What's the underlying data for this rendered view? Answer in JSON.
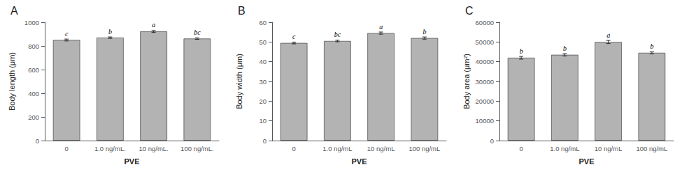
{
  "chart_data": [
    {
      "type": "bar",
      "title": "A",
      "xlabel": "PVE",
      "ylabel": "Body length (μm)",
      "categories": [
        "0",
        "1.0 ng/mL.",
        "10 ng/mL.",
        "100 ng/mL."
      ],
      "values": [
        850,
        870,
        922,
        862
      ],
      "errors": [
        8,
        6,
        8,
        6
      ],
      "annotations": [
        "c",
        "b",
        "a",
        "bc"
      ],
      "color": "#b3b3b3",
      "ylim": [
        0,
        1000
      ],
      "yticks": [
        0,
        200,
        400,
        600,
        800,
        1000
      ],
      "grid": false
    },
    {
      "type": "bar",
      "title": "B",
      "xlabel": "PVE",
      "ylabel": "Body width (μm)",
      "categories": [
        "0",
        "1.0 ng/mL",
        "10 ng/mL",
        "100 ng/mL"
      ],
      "values": [
        49.5,
        50.5,
        54.5,
        52.0
      ],
      "errors": [
        0.45,
        0.4,
        0.55,
        0.55
      ],
      "annotations": [
        "c",
        "bc",
        "a",
        "b"
      ],
      "color": "#b3b3b3",
      "ylim": [
        0,
        60
      ],
      "yticks": [
        0,
        10,
        20,
        30,
        40,
        50,
        60
      ],
      "grid": false
    },
    {
      "type": "bar",
      "title": "C",
      "xlabel": "PVE",
      "ylabel": "Body area (μm²)",
      "categories": [
        "0",
        "1.0 ng/mL",
        "10 ng/mL",
        "100 ng/mL"
      ],
      "values": [
        42000,
        43500,
        50000,
        44500
      ],
      "errors": [
        700,
        600,
        800,
        500
      ],
      "annotations": [
        "b",
        "b",
        "a",
        "b"
      ],
      "color": "#b3b3b3",
      "ylim": [
        0,
        60000
      ],
      "yticks": [
        0,
        10000,
        20000,
        30000,
        40000,
        50000,
        60000
      ],
      "grid": false
    }
  ]
}
